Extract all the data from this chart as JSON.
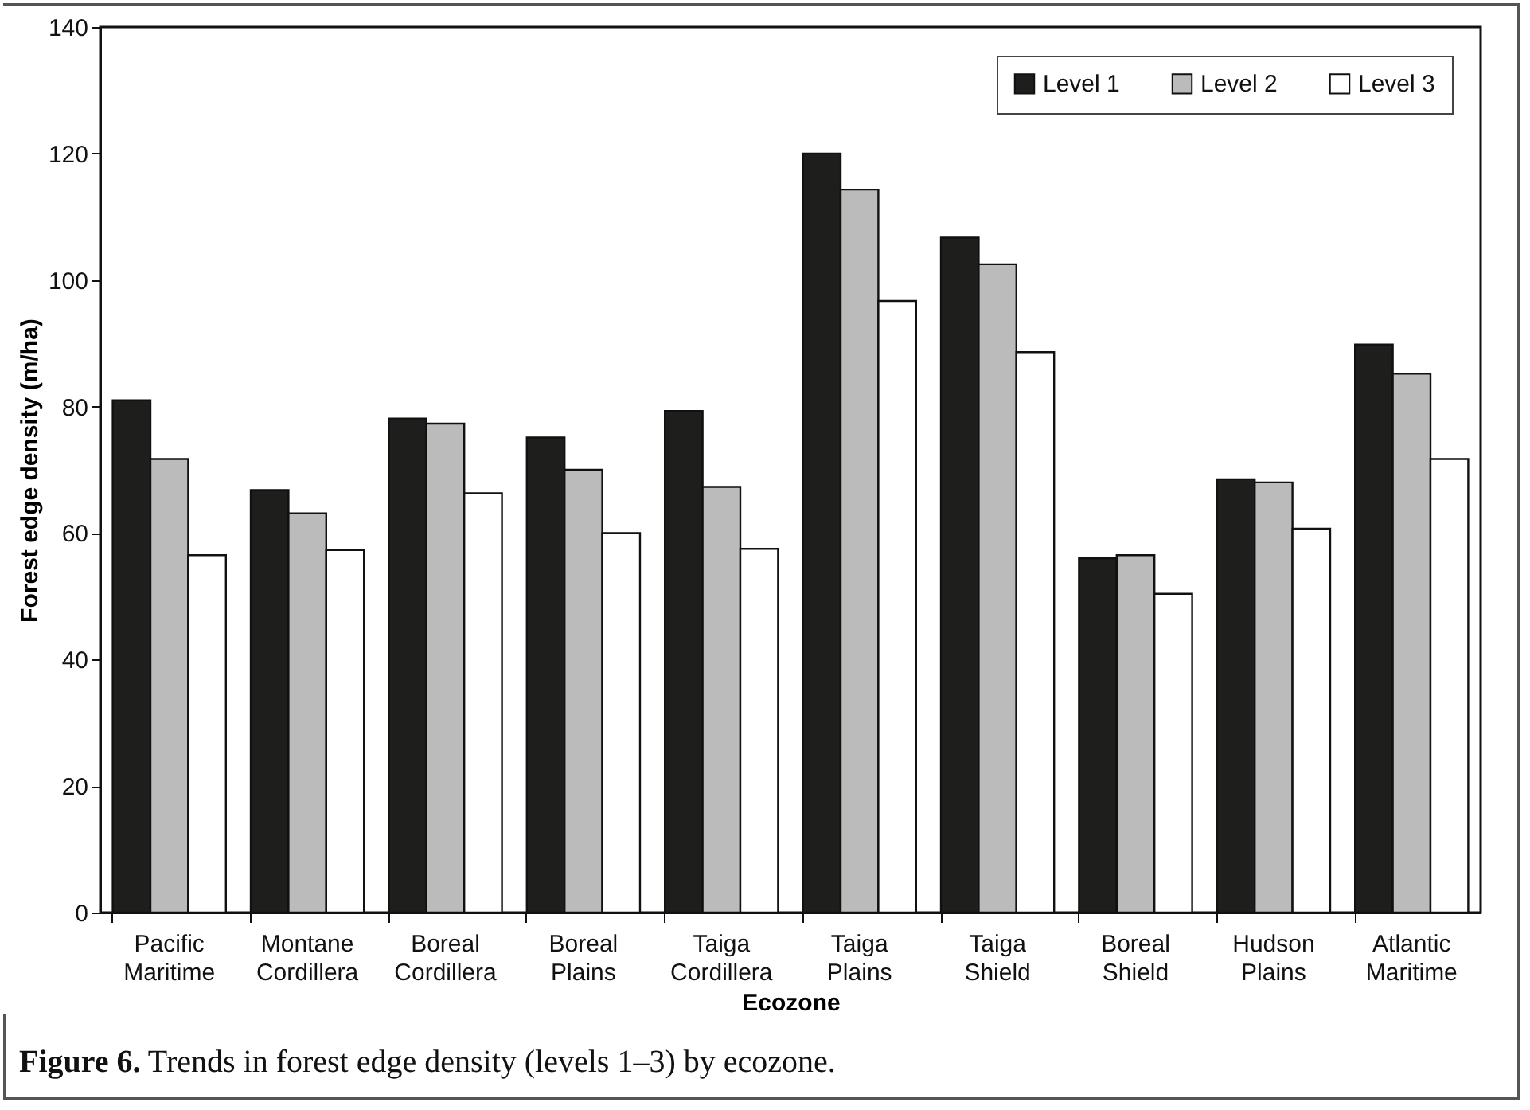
{
  "chart_data": {
    "type": "bar",
    "xlabel": "Ecozone",
    "ylabel": "Forest edge density (m/ha)",
    "categories": [
      "Pacific Maritime",
      "Montane Cordillera",
      "Boreal Cordillera",
      "Boreal Plains",
      "Taiga Cordillera",
      "Taiga Plains",
      "Taiga Shield",
      "Boreal Shield",
      "Hudson Plains",
      "Atlantic Maritime"
    ],
    "series": [
      {
        "name": "Level 1",
        "color": "#1e1e1c",
        "values": [
          81.0,
          66.8,
          78.1,
          75.1,
          79.3,
          120.0,
          106.7,
          56.0,
          68.5,
          89.8
        ]
      },
      {
        "name": "Level 2",
        "color": "#bbbbbb",
        "values": [
          71.7,
          63.1,
          77.3,
          70.0,
          67.3,
          114.3,
          102.5,
          56.5,
          68.0,
          85.2
        ]
      },
      {
        "name": "Level 3",
        "color": "#ffffff",
        "values": [
          56.5,
          57.3,
          66.3,
          60.0,
          57.5,
          96.7,
          88.6,
          50.4,
          60.7,
          71.7
        ]
      }
    ],
    "ylim": [
      0,
      140
    ],
    "yticks": [
      0,
      20,
      40,
      60,
      80,
      100,
      120,
      140
    ],
    "grid": false,
    "legend": "top right",
    "annotations": [
      "Figure 6. Trends in forest edge density (levels 1–3) by ecozone."
    ]
  }
}
